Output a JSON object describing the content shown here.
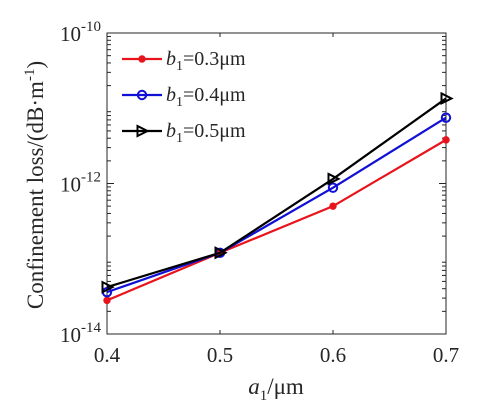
{
  "chart_data": {
    "type": "line",
    "title": "",
    "xlabel": "a1/μm",
    "ylabel": "Confinement loss/(dB·m⁻¹)",
    "xlim": [
      0.4,
      0.7
    ],
    "ylim": [
      1e-14,
      1e-10
    ],
    "yscale": "log",
    "grid": false,
    "legend_position": "top-left",
    "x": [
      0.4,
      0.5,
      0.6,
      0.7
    ],
    "x_ticks": [
      "0.4",
      "0.5",
      "0.6",
      "0.7"
    ],
    "y_ticks": [
      {
        "base": "10",
        "exp": "-14",
        "value": 1e-14
      },
      {
        "base": "10",
        "exp": "-12",
        "value": 1e-12
      },
      {
        "base": "10",
        "exp": "-10",
        "value": 1e-10
      }
    ],
    "series": [
      {
        "name": "b1=0.3μm",
        "name_main": "b",
        "name_sub": "1",
        "name_rest": "=0.3μm",
        "color": "#e8141c",
        "marker": "dot",
        "values": [
          2.8e-14,
          1.2e-13,
          5e-13,
          3.8e-12
        ]
      },
      {
        "name": "b1=0.4μm",
        "name_main": "b",
        "name_sub": "1",
        "name_rest": "=0.4μm",
        "color": "#1010d6",
        "marker": "circle",
        "values": [
          3.6e-14,
          1.2e-13,
          8.8e-13,
          7.5e-12
        ]
      },
      {
        "name": "b1=0.5μm",
        "name_main": "b",
        "name_sub": "1",
        "name_rest": "=0.5μm",
        "color": "#000000",
        "marker": "triangle-right",
        "values": [
          4.2e-14,
          1.2e-13,
          1.15e-12,
          1.35e-11
        ]
      }
    ]
  }
}
